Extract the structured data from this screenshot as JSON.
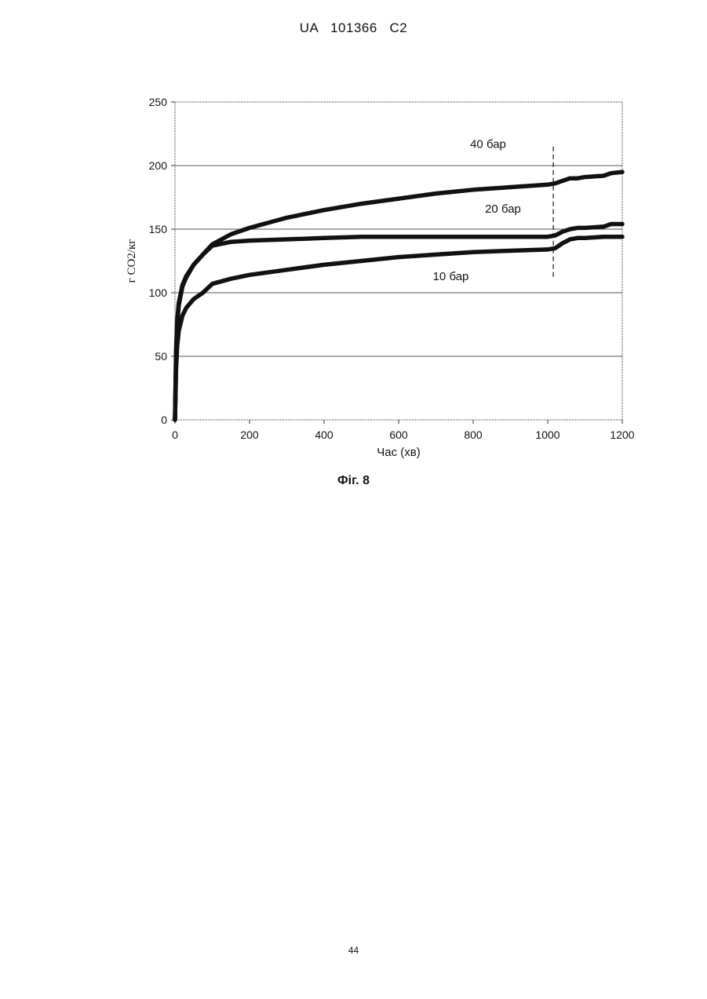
{
  "header": {
    "doc_id": "UA   101366   C2"
  },
  "figure_caption": "Фіг. 8",
  "page_number": "44",
  "chart_data": {
    "type": "line",
    "xlabel": "Час (хв)",
    "ylabel": "г CO2/кг",
    "xlim": [
      0,
      1200
    ],
    "ylim": [
      0,
      250
    ],
    "xticks": [
      0,
      200,
      400,
      600,
      800,
      1000,
      1200
    ],
    "yticks": [
      0,
      50,
      100,
      150,
      200,
      250
    ],
    "grid": "horizontal",
    "marker_line": {
      "x": 1015,
      "y_range": [
        110,
        215
      ],
      "style": "dashed"
    },
    "series": [
      {
        "name": "40 бар",
        "x": [
          0,
          3,
          6,
          10,
          20,
          30,
          50,
          75,
          100,
          150,
          200,
          300,
          400,
          500,
          600,
          700,
          800,
          900,
          1000,
          1020,
          1040,
          1060,
          1080,
          1100,
          1150,
          1170,
          1200
        ],
        "y": [
          0,
          50,
          75,
          90,
          105,
          112,
          122,
          130,
          138,
          146,
          151,
          159,
          165,
          170,
          174,
          178,
          181,
          183,
          185,
          186,
          188,
          190,
          190,
          191,
          192,
          194,
          195
        ]
      },
      {
        "name": "20 бар",
        "x": [
          0,
          3,
          6,
          10,
          20,
          30,
          50,
          75,
          100,
          150,
          200,
          300,
          400,
          500,
          600,
          700,
          800,
          900,
          1000,
          1020,
          1040,
          1060,
          1080,
          1100,
          1150,
          1170,
          1200
        ],
        "y": [
          0,
          55,
          78,
          92,
          106,
          113,
          122,
          130,
          137,
          140,
          141,
          142,
          143,
          144,
          144,
          144,
          144,
          144,
          144,
          145,
          148,
          150,
          151,
          151,
          152,
          154,
          154
        ]
      },
      {
        "name": "10 бар",
        "x": [
          0,
          3,
          6,
          10,
          20,
          30,
          50,
          75,
          100,
          150,
          200,
          300,
          400,
          500,
          600,
          700,
          800,
          900,
          1000,
          1020,
          1040,
          1060,
          1080,
          1100,
          1150,
          1200
        ],
        "y": [
          0,
          40,
          58,
          70,
          82,
          88,
          95,
          100,
          107,
          111,
          114,
          118,
          122,
          125,
          128,
          130,
          132,
          133,
          134,
          135,
          139,
          142,
          143,
          143,
          144,
          144
        ]
      }
    ],
    "annotations": [
      {
        "text": "40 бар",
        "x": 840,
        "y": 217
      },
      {
        "text": "20 бар",
        "x": 880,
        "y": 166
      },
      {
        "text": "10 бар",
        "x": 740,
        "y": 113
      }
    ]
  }
}
